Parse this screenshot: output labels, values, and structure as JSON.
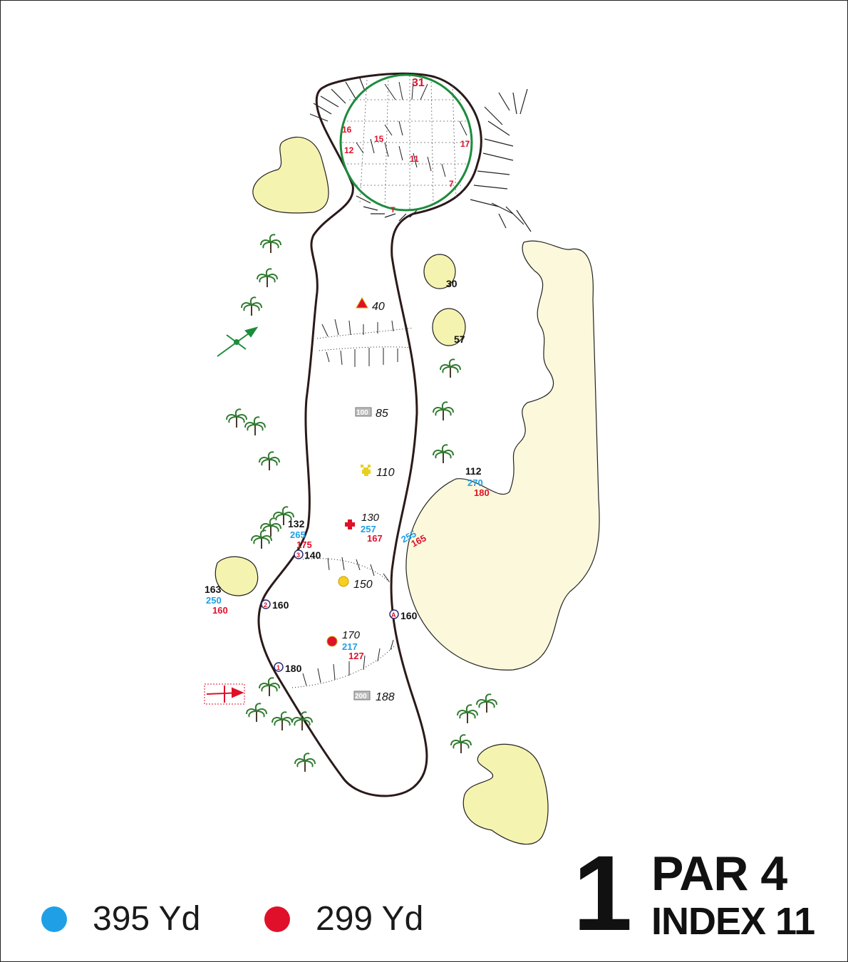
{
  "hole": {
    "number": "1",
    "par": "PAR 4",
    "index": "INDEX 11"
  },
  "tees": [
    {
      "distance": "395 Yd",
      "color": "#1fa0e6"
    },
    {
      "distance": "299 Yd",
      "color": "#e0102a"
    }
  ],
  "colors": {
    "sand": "#f5f3b0",
    "sand_light": "#fbf8dc",
    "green_ring": "#1c8c3c",
    "outline": "#2b1a1a",
    "blue": "#1fa0e6",
    "red": "#e0102a",
    "tree": "#2f7a2f"
  },
  "green_pins": [
    "31",
    "16",
    "15",
    "12",
    "11",
    "17",
    "7",
    "T"
  ],
  "markers": {
    "triangle": "40",
    "m100_badge": "100",
    "m100": "85",
    "plus_yellow": "110",
    "cross_red": "130",
    "cross_red_blue": "257",
    "cross_red_red": "167",
    "circle_yellow": "150",
    "circle_red": "170",
    "circle_red_blue": "217",
    "circle_red_red": "127",
    "m200_badge": "200",
    "m200": "188",
    "bunker_30": "30",
    "bunker_57": "57",
    "right_112": "112",
    "right_270": "270",
    "right_180": "180",
    "right_255": "255",
    "right_165": "165",
    "left_132": "132",
    "left_265": "265",
    "left_175": "175",
    "left_163": "163",
    "left_250": "250",
    "left_160r": "160",
    "post3_label": "3",
    "post3": "140",
    "post2_label": "2",
    "post2": "160",
    "post1_label": "1",
    "post1": "180",
    "postA_label": "A",
    "postA": "160"
  }
}
